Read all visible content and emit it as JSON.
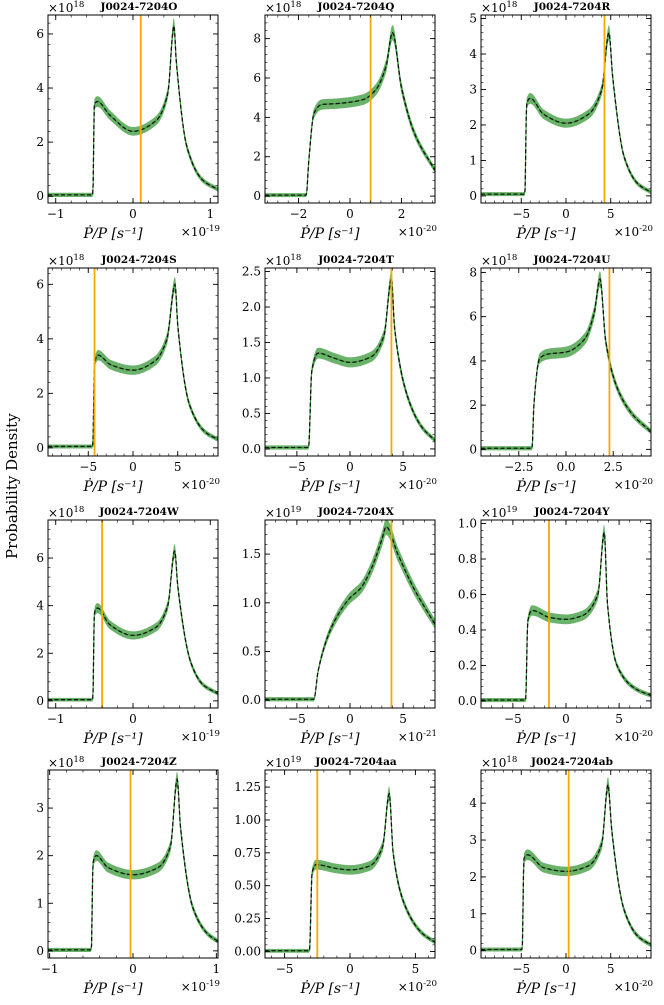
{
  "figure": {
    "ylabel": "Probability Density"
  },
  "colors": {
    "band": "#2ca02c",
    "band_fill": "#3a9a3a",
    "median": "#111111",
    "observed": "#f5a800"
  },
  "chart_data": [
    {
      "type": "area",
      "title": "J0024-7204O",
      "offset_text": "×10^18",
      "x_offset_text": "×10^-19",
      "xlabel": "Ṗ/P [s⁻¹]",
      "ylabel": "Probability Density",
      "xlim": [
        -1.1,
        1.1
      ],
      "ylim": [
        -0.25,
        6.7
      ],
      "xticks": [
        -1,
        0,
        1
      ],
      "xtick_labels": [
        "−1",
        "0",
        "1"
      ],
      "yticks": [
        0,
        2,
        4,
        6
      ],
      "ytick_labels": [
        "0",
        "2",
        "4",
        "6"
      ],
      "series": [
        {
          "name": "posterior",
          "x": [
            -1.1,
            -0.52,
            -0.5,
            -0.46,
            -0.3,
            0,
            0.3,
            0.45,
            0.53,
            0.56,
            0.7,
            0.9,
            1.1
          ],
          "y": [
            0.05,
            0.05,
            3.4,
            3.5,
            3.0,
            2.4,
            2.8,
            3.8,
            6.3,
            5.0,
            1.8,
            0.6,
            0.25
          ]
        }
      ],
      "observed": 0.1
    },
    {
      "type": "area",
      "title": "J0024-7204Q",
      "offset_text": "×10^18",
      "x_offset_text": "×10^-20",
      "xlabel": "Ṗ/P [s⁻¹]",
      "ylabel": "Probability Density",
      "xlim": [
        -3.3,
        3.3
      ],
      "ylim": [
        -0.35,
        9.2
      ],
      "xticks": [
        -2,
        0,
        2
      ],
      "xtick_labels": [
        "−2",
        "0",
        "2"
      ],
      "yticks": [
        0,
        2,
        4,
        6,
        8
      ],
      "ytick_labels": [
        "0",
        "2",
        "4",
        "6",
        "8"
      ],
      "series": [
        {
          "name": "posterior",
          "x": [
            -3.3,
            -1.7,
            -1.6,
            -1.4,
            -1.1,
            -0.5,
            0.5,
            1.0,
            1.4,
            1.65,
            2.0,
            2.5,
            3.3
          ],
          "y": [
            0.05,
            0.05,
            1.8,
            4.2,
            4.65,
            4.7,
            4.9,
            5.4,
            6.6,
            8.3,
            5.5,
            3.2,
            1.3
          ]
        }
      ],
      "observed": 0.8
    },
    {
      "type": "area",
      "title": "J0024-7204R",
      "offset_text": "×10^18",
      "x_offset_text": "×10^-20",
      "xlabel": "Ṗ/P [s⁻¹]",
      "ylabel": "Probability Density",
      "xlim": [
        -9.5,
        9.5
      ],
      "ylim": [
        -0.2,
        5.1
      ],
      "xticks": [
        -5,
        0,
        5
      ],
      "xtick_labels": [
        "−5",
        "0",
        "5"
      ],
      "yticks": [
        0,
        1,
        2,
        3,
        4,
        5
      ],
      "ytick_labels": [
        "0",
        "1",
        "2",
        "3",
        "4",
        "5"
      ],
      "series": [
        {
          "name": "posterior",
          "x": [
            -9.5,
            -4.6,
            -4.4,
            -4.0,
            -2.5,
            0,
            2.5,
            4.0,
            4.8,
            5.2,
            6.5,
            8.0,
            9.5
          ],
          "y": [
            0.05,
            0.05,
            2.6,
            2.75,
            2.3,
            2.05,
            2.3,
            3.0,
            4.6,
            3.4,
            1.1,
            0.35,
            0.1
          ]
        }
      ],
      "observed": 4.3
    },
    {
      "type": "area",
      "title": "J0024-7204S",
      "offset_text": "×10^18",
      "x_offset_text": "×10^-20",
      "xlabel": "Ṗ/P [s⁻¹]",
      "ylabel": "Probability Density",
      "xlim": [
        -9.5,
        9.5
      ],
      "ylim": [
        -0.3,
        6.6
      ],
      "xticks": [
        -5,
        0,
        5
      ],
      "xtick_labels": [
        "−5",
        "0",
        "5"
      ],
      "yticks": [
        0,
        2,
        4,
        6
      ],
      "ytick_labels": [
        "0",
        "2",
        "4",
        "6"
      ],
      "series": [
        {
          "name": "posterior",
          "x": [
            -9.5,
            -4.5,
            -4.3,
            -3.9,
            -2.5,
            0,
            2.5,
            3.8,
            4.7,
            5.0,
            6.3,
            8.0,
            9.5
          ],
          "y": [
            0.05,
            0.05,
            3.1,
            3.4,
            3.05,
            2.85,
            3.2,
            4.0,
            6.0,
            4.5,
            1.6,
            0.6,
            0.3
          ]
        }
      ],
      "observed": -4.3
    },
    {
      "type": "area",
      "title": "J0024-7204T",
      "offset_text": "×10^18",
      "x_offset_text": "×10^-20",
      "xlabel": "Ṗ/P [s⁻¹]",
      "ylabel": "Probability Density",
      "xlim": [
        -8,
        8
      ],
      "ylim": [
        -0.1,
        2.55
      ],
      "xticks": [
        -5,
        0,
        5
      ],
      "xtick_labels": [
        "−5",
        "0",
        "5"
      ],
      "yticks": [
        0,
        0.5,
        1,
        1.5,
        2,
        2.5
      ],
      "ytick_labels": [
        "0.0",
        "0.5",
        "1.0",
        "1.5",
        "2.0",
        "2.5"
      ],
      "series": [
        {
          "name": "posterior",
          "x": [
            -8,
            -3.9,
            -3.6,
            -3.0,
            -1.5,
            0,
            2.0,
            3.2,
            3.9,
            4.2,
            5.5,
            6.8,
            8
          ],
          "y": [
            0.02,
            0.02,
            1.1,
            1.35,
            1.28,
            1.22,
            1.3,
            1.6,
            2.4,
            1.7,
            0.7,
            0.3,
            0.12
          ]
        }
      ],
      "observed": 3.9
    },
    {
      "type": "area",
      "title": "J0024-7204U",
      "offset_text": "×10^18",
      "x_offset_text": "×10^-20",
      "xlabel": "Ṗ/P [s⁻¹]",
      "ylabel": "Probability Density",
      "xlim": [
        -4.5,
        4.5
      ],
      "ylim": [
        -0.3,
        8.2
      ],
      "xticks": [
        -2.5,
        0,
        2.5
      ],
      "xtick_labels": [
        "−2.5",
        "0.0",
        "2.5"
      ],
      "yticks": [
        0,
        2,
        4,
        6,
        8
      ],
      "ytick_labels": [
        "0",
        "2",
        "4",
        "6",
        "8"
      ],
      "series": [
        {
          "name": "posterior",
          "x": [
            -4.5,
            -1.8,
            -1.7,
            -1.4,
            -1.0,
            0,
            1.0,
            1.5,
            1.8,
            2.1,
            2.7,
            3.5,
            4.5
          ],
          "y": [
            0.05,
            0.05,
            2.0,
            4.1,
            4.3,
            4.4,
            5.0,
            6.2,
            7.7,
            4.9,
            2.8,
            1.6,
            0.8
          ]
        }
      ],
      "observed": 2.3
    },
    {
      "type": "area",
      "title": "J0024-7204W",
      "offset_text": "×10^18",
      "x_offset_text": "×10^-19",
      "xlabel": "Ṗ/P [s⁻¹]",
      "ylabel": "Probability Density",
      "xlim": [
        -1.1,
        1.1
      ],
      "ylim": [
        -0.3,
        7.6
      ],
      "xticks": [
        -1,
        0,
        1
      ],
      "xtick_labels": [
        "−1",
        "0",
        "1"
      ],
      "yticks": [
        0,
        2,
        4,
        6
      ],
      "ytick_labels": [
        "0",
        "2",
        "4",
        "6"
      ],
      "series": [
        {
          "name": "posterior",
          "x": [
            -1.1,
            -0.52,
            -0.5,
            -0.46,
            -0.3,
            0,
            0.3,
            0.45,
            0.54,
            0.58,
            0.75,
            0.9,
            1.1
          ],
          "y": [
            0.05,
            0.05,
            3.7,
            3.9,
            3.2,
            2.75,
            3.1,
            4.0,
            6.3,
            4.8,
            1.6,
            0.7,
            0.3
          ]
        }
      ],
      "observed": -0.4
    },
    {
      "type": "area",
      "title": "J0024-7204X",
      "offset_text": "×10^19",
      "x_offset_text": "×10^-21",
      "xlabel": "Ṗ/P [s⁻¹]",
      "ylabel": "Probability Density",
      "xlim": [
        -8,
        8
      ],
      "ylim": [
        -0.08,
        1.85
      ],
      "xticks": [
        -5,
        0,
        5
      ],
      "xtick_labels": [
        "−5",
        "0",
        "5"
      ],
      "yticks": [
        0,
        0.5,
        1,
        1.5
      ],
      "ytick_labels": [
        "0.0",
        "0.5",
        "1.0",
        "1.5"
      ],
      "series": [
        {
          "name": "posterior",
          "x": [
            -8,
            -3.4,
            -3.0,
            -2.0,
            -1.0,
            0,
            1.0,
            2.0,
            3.0,
            3.4,
            4.5,
            6.0,
            8
          ],
          "y": [
            0.01,
            0.01,
            0.3,
            0.68,
            0.9,
            1.05,
            1.15,
            1.35,
            1.65,
            1.78,
            1.5,
            1.15,
            0.78
          ]
        }
      ],
      "observed": 3.9
    },
    {
      "type": "area",
      "title": "J0024-7204Y",
      "offset_text": "×10^19",
      "x_offset_text": "×10^-20",
      "xlabel": "Ṗ/P [s⁻¹]",
      "ylabel": "Probability Density",
      "xlim": [
        -8,
        8
      ],
      "ylim": [
        -0.04,
        1.02
      ],
      "xticks": [
        -5,
        0,
        5
      ],
      "xtick_labels": [
        "−5",
        "0",
        "5"
      ],
      "yticks": [
        0,
        0.2,
        0.4,
        0.6,
        0.8,
        1.0
      ],
      "ytick_labels": [
        "0.0",
        "0.2",
        "0.4",
        "0.6",
        "0.8",
        "1.0"
      ],
      "series": [
        {
          "name": "posterior",
          "x": [
            -8,
            -3.8,
            -3.6,
            -3.2,
            -1.5,
            0,
            1.5,
            3.0,
            3.6,
            3.9,
            4.8,
            6.5,
            8
          ],
          "y": [
            0.005,
            0.005,
            0.45,
            0.51,
            0.47,
            0.46,
            0.48,
            0.6,
            0.95,
            0.55,
            0.2,
            0.07,
            0.03
          ]
        }
      ],
      "observed": -1.6
    },
    {
      "type": "area",
      "title": "J0024-7204Z",
      "offset_text": "×10^18",
      "x_offset_text": "×10^-19",
      "xlabel": "Ṗ/P [s⁻¹]",
      "ylabel": "Probability Density",
      "xlim": [
        -1.02,
        1.02
      ],
      "ylim": [
        -0.15,
        3.8
      ],
      "xticks": [
        -1,
        0,
        1
      ],
      "xtick_labels": [
        "−1",
        "0",
        "1"
      ],
      "yticks": [
        0,
        1,
        2,
        3
      ],
      "ytick_labels": [
        "0",
        "1",
        "2",
        "3"
      ],
      "series": [
        {
          "name": "posterior",
          "x": [
            -1.02,
            -0.5,
            -0.48,
            -0.44,
            -0.3,
            0,
            0.3,
            0.45,
            0.53,
            0.57,
            0.72,
            0.9,
            1.02
          ],
          "y": [
            0.02,
            0.02,
            1.85,
            2.0,
            1.75,
            1.6,
            1.75,
            2.2,
            3.6,
            2.6,
            0.9,
            0.35,
            0.2
          ]
        }
      ],
      "observed": -0.03
    },
    {
      "type": "area",
      "title": "J0024-7204aa",
      "offset_text": "×10^19",
      "x_offset_text": "×10^-20",
      "xlabel": "Ṗ/P [s⁻¹]",
      "ylabel": "Probability Density",
      "xlim": [
        -6.5,
        6.5
      ],
      "ylim": [
        -0.05,
        1.38
      ],
      "xticks": [
        -5,
        0,
        5
      ],
      "xtick_labels": [
        "−5",
        "0",
        "5"
      ],
      "yticks": [
        0,
        0.25,
        0.5,
        0.75,
        1.0,
        1.25
      ],
      "ytick_labels": [
        "0.00",
        "0.25",
        "0.50",
        "0.75",
        "1.00",
        "1.25"
      ],
      "series": [
        {
          "name": "posterior",
          "x": [
            -6.5,
            -3.1,
            -2.9,
            -2.6,
            -1.0,
            0,
            1.5,
            2.5,
            3.0,
            3.3,
            4.2,
            5.5,
            6.5
          ],
          "y": [
            0.005,
            0.005,
            0.6,
            0.66,
            0.63,
            0.62,
            0.65,
            0.8,
            1.2,
            0.75,
            0.35,
            0.14,
            0.07
          ]
        }
      ],
      "observed": -2.5
    },
    {
      "type": "area",
      "title": "J0024-7204ab",
      "offset_text": "×10^18",
      "x_offset_text": "×10^-20",
      "xlabel": "Ṗ/P [s⁻¹]",
      "ylabel": "Probability Density",
      "xlim": [
        -9.5,
        9.5
      ],
      "ylim": [
        -0.2,
        4.9
      ],
      "xticks": [
        -5,
        0,
        5
      ],
      "xtick_labels": [
        "−5",
        "0",
        "5"
      ],
      "yticks": [
        0,
        1,
        2,
        3,
        4
      ],
      "ytick_labels": [
        "0",
        "1",
        "2",
        "3",
        "4"
      ],
      "series": [
        {
          "name": "posterior",
          "x": [
            -9.5,
            -4.9,
            -4.7,
            -4.3,
            -2.5,
            0,
            2.5,
            4.0,
            4.7,
            5.1,
            6.5,
            8.0,
            9.5
          ],
          "y": [
            0.03,
            0.03,
            2.5,
            2.6,
            2.25,
            2.15,
            2.3,
            2.9,
            4.5,
            3.3,
            1.1,
            0.4,
            0.15
          ]
        }
      ],
      "observed": 0.3
    }
  ]
}
